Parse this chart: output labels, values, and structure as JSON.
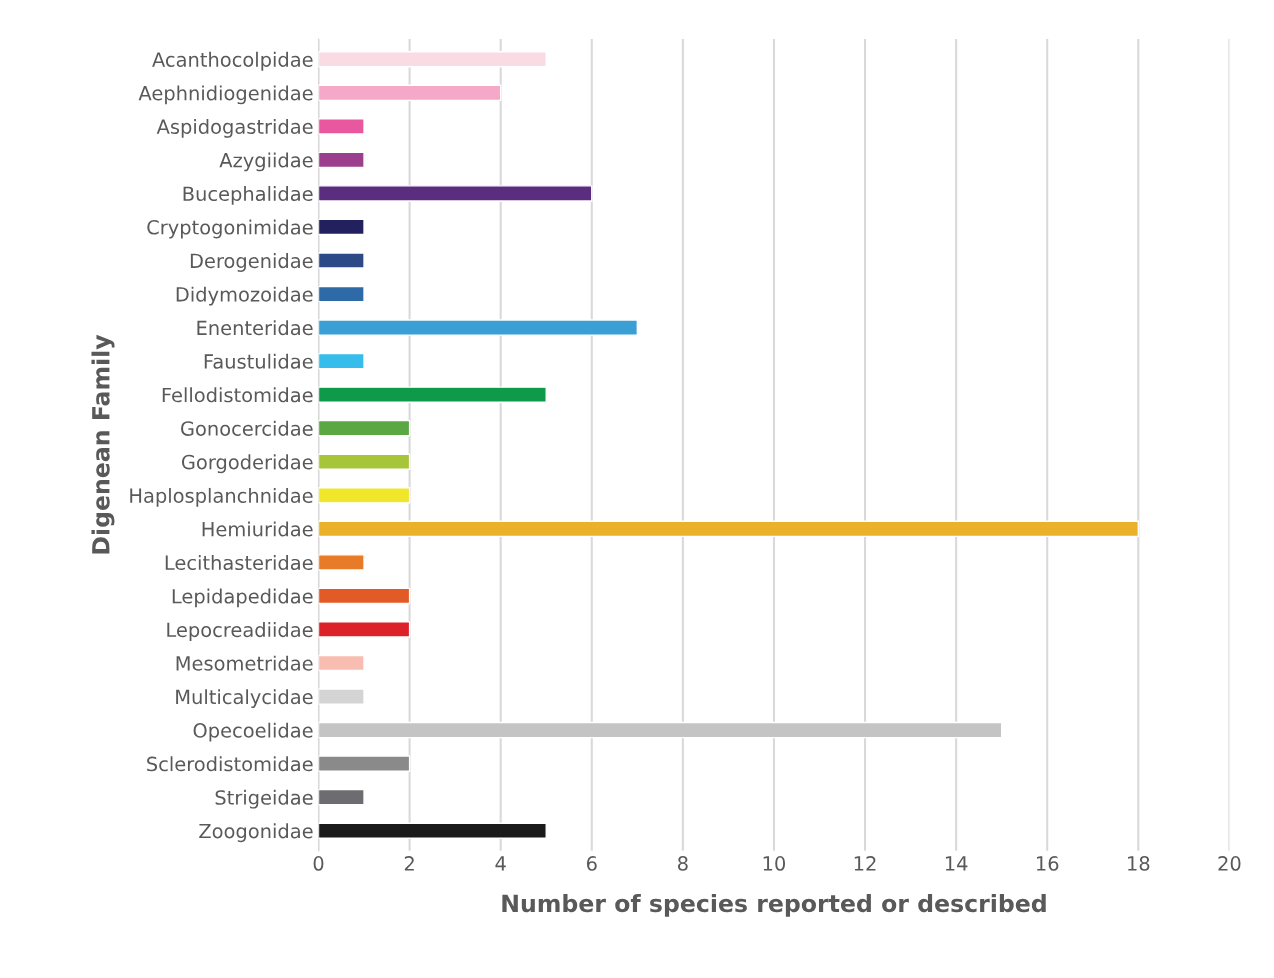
{
  "chart_data": {
    "type": "bar",
    "orientation": "horizontal",
    "xlabel": "Number of species reported or described",
    "ylabel": "Digenean Family",
    "categories": [
      "Acanthocolpidae",
      "Aephnidiogenidae",
      "Aspidogastridae",
      "Azygiidae",
      "Bucephalidae",
      "Cryptogonimidae",
      "Derogenidae",
      "Didymozoidae",
      "Enenteridae",
      "Faustulidae",
      "Fellodistomidae",
      "Gonocercidae",
      "Gorgoderidae",
      "Haplosplanchnidae",
      "Hemiuridae",
      "Lecithasteridae",
      "Lepidapedidae",
      "Lepocreadiidae",
      "Mesometridae",
      "Multicalycidae",
      "Opecoelidae",
      "Sclerodistomidae",
      "Strigeidae",
      "Zoogonidae"
    ],
    "values": [
      5,
      4,
      1,
      1,
      6,
      1,
      1,
      1,
      7,
      1,
      5,
      2,
      2,
      2,
      18,
      1,
      2,
      2,
      1,
      1,
      15,
      2,
      1,
      5
    ],
    "colors": [
      "#fadbe4",
      "#f5a8c8",
      "#e9579e",
      "#9b3f8d",
      "#5b2d7e",
      "#23205e",
      "#2b4a86",
      "#2f6aa8",
      "#3a9fd4",
      "#36bdec",
      "#0e9a48",
      "#5aa744",
      "#a6c539",
      "#f0e62a",
      "#ebb12a",
      "#e87b27",
      "#e25a26",
      "#dc2128",
      "#f8bdb0",
      "#d4d4d4",
      "#c4c4c4",
      "#8a8a8a",
      "#6d6d71",
      "#1b1b1b"
    ],
    "xlim": [
      0,
      20
    ],
    "xticks": [
      0,
      2,
      4,
      6,
      8,
      10,
      12,
      14,
      16,
      18,
      20
    ],
    "grid": "x"
  }
}
